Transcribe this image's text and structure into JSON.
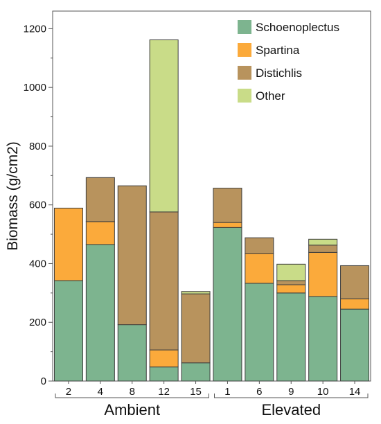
{
  "chart_data": {
    "type": "bar",
    "stacked": true,
    "ylabel": "Biomass (g/cm2)",
    "xlabel": "",
    "ylim": [
      0,
      1260
    ],
    "yticks": [
      0,
      200,
      400,
      600,
      800,
      1000,
      1200
    ],
    "grid": false,
    "legend_position": "top-right",
    "groups": [
      {
        "name": "Ambient",
        "categories": [
          "2",
          "4",
          "8",
          "12",
          "15"
        ]
      },
      {
        "name": "Elevated",
        "categories": [
          "1",
          "6",
          "9",
          "10",
          "14"
        ]
      }
    ],
    "categories": [
      "2",
      "4",
      "8",
      "12",
      "15",
      "1",
      "6",
      "9",
      "10",
      "14"
    ],
    "series": [
      {
        "name": "Schoenoplectus",
        "color": "#7db48f",
        "values": [
          342,
          465,
          192,
          48,
          62,
          523,
          333,
          300,
          288,
          245
        ]
      },
      {
        "name": "Spartina",
        "color": "#fbaa3b",
        "values": [
          247,
          78,
          0,
          58,
          0,
          17,
          102,
          28,
          150,
          35
        ]
      },
      {
        "name": "Distichlis",
        "color": "#b8935d",
        "values": [
          0,
          150,
          473,
          470,
          235,
          117,
          53,
          14,
          25,
          113
        ]
      },
      {
        "name": "Other",
        "color": "#c9dc88",
        "values": [
          0,
          0,
          0,
          586,
          8,
          0,
          0,
          56,
          20,
          0
        ]
      }
    ]
  }
}
